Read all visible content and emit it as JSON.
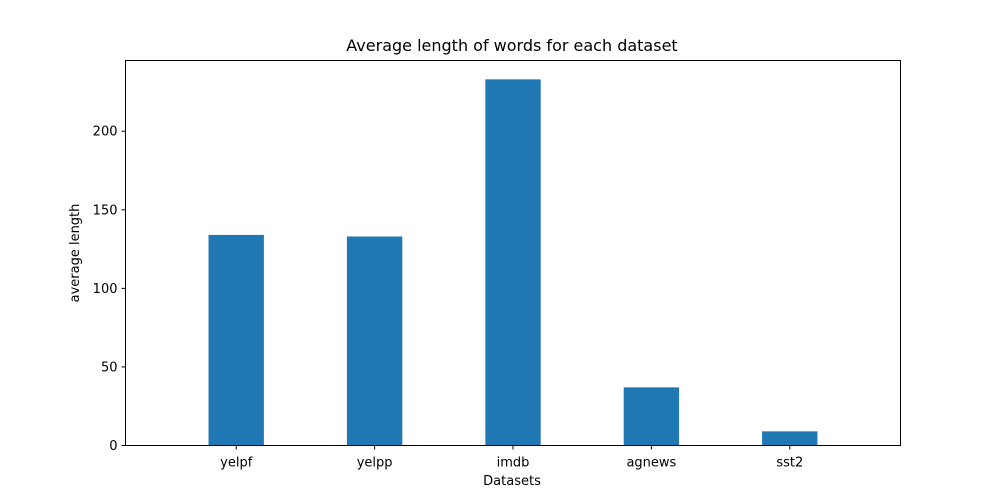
{
  "chart_data": {
    "type": "bar",
    "title": "Average length of words for each dataset",
    "xlabel": "Datasets",
    "ylabel": "average length",
    "categories": [
      "yelpf",
      "yelpp",
      "imdb",
      "agnews",
      "sst2"
    ],
    "values": [
      134,
      133,
      233,
      37,
      9
    ],
    "ylim": [
      0,
      245
    ],
    "yticks": [
      0,
      50,
      100,
      150,
      200
    ],
    "bar_color": "#1f77b4",
    "grid": false,
    "legend": "none"
  }
}
